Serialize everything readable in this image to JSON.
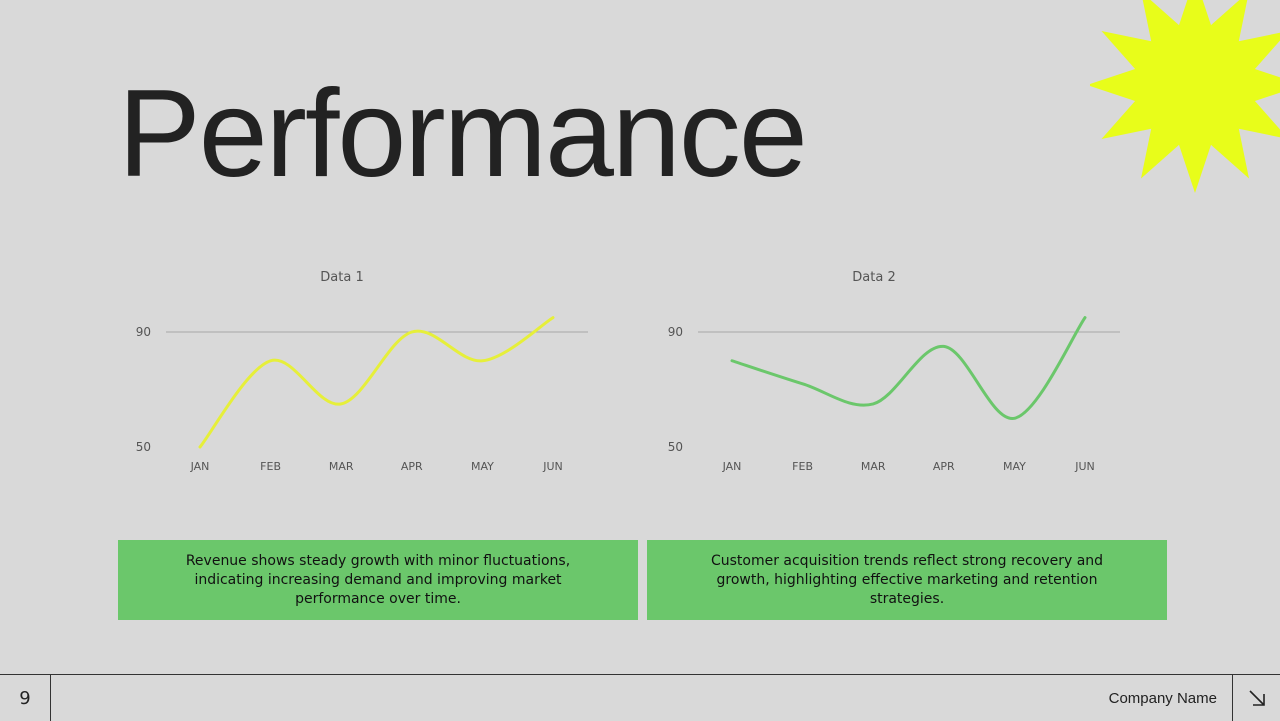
{
  "slide": {
    "title": "Performance",
    "page_number": "9",
    "company_name": "Company Name",
    "accent_color": "#e8fd1a",
    "note_bg": "#6bc76b"
  },
  "chart_data": [
    {
      "type": "line",
      "title": "Data 1",
      "categories": [
        "JAN",
        "FEB",
        "MAR",
        "APR",
        "MAY",
        "JUN"
      ],
      "series": [
        {
          "values": [
            50,
            80,
            65,
            90,
            80,
            95
          ],
          "color": "#e6ef3a"
        }
      ],
      "yticks": [
        50,
        90
      ],
      "ylim": [
        50,
        90
      ],
      "grid_lines": [
        90
      ],
      "smooth": true
    },
    {
      "type": "line",
      "title": "Data 2",
      "categories": [
        "JAN",
        "FEB",
        "MAR",
        "APR",
        "MAY",
        "JUN"
      ],
      "series": [
        {
          "values": [
            80,
            72,
            65,
            85,
            60,
            95
          ],
          "color": "#6bc76b"
        }
      ],
      "yticks": [
        50,
        90
      ],
      "ylim": [
        50,
        90
      ],
      "grid_lines": [
        90
      ],
      "smooth": true
    }
  ],
  "notes": [
    {
      "text": "Revenue shows steady growth with minor fluctuations, indicating increasing demand and improving market performance over time."
    },
    {
      "text": "Customer acquisition trends reflect strong recovery and growth, highlighting effective marketing and retention strategies."
    }
  ]
}
